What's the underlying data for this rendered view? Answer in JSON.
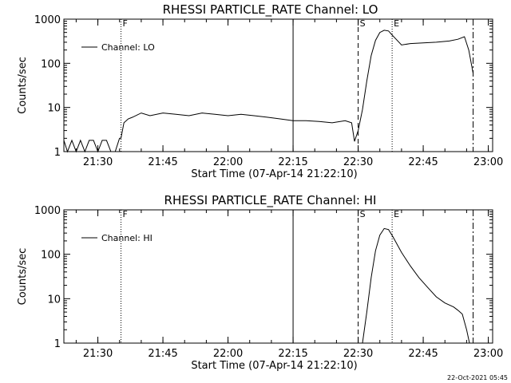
{
  "chart_data": [
    {
      "type": "line",
      "title": "RHESSI PARTICLE_RATE Channel: LO",
      "xlabel": "Start Time (07-Apr-14 21:22:10)",
      "ylabel": "Counts/sec",
      "yscale": "log",
      "ylim": [
        1,
        1000
      ],
      "xlim": [
        "21:22:10",
        "23:01:00"
      ],
      "x_ticks": [
        "21:30",
        "21:45",
        "22:00",
        "22:15",
        "22:30",
        "22:45",
        "23:00"
      ],
      "y_ticks": [
        "1",
        "10",
        "100",
        "1000"
      ],
      "grid": false,
      "legend": {
        "position": "top-left",
        "entries": [
          "Channel: LO"
        ]
      },
      "markers": [
        {
          "label": "F",
          "time": "21:35:20",
          "style": "dotted"
        },
        {
          "time": "22:15:00",
          "style": "solid"
        },
        {
          "label": "S",
          "time": "22:30:00",
          "style": "dashed"
        },
        {
          "label": "E",
          "time": "22:37:50",
          "style": "dotted"
        },
        {
          "time": "22:56:30",
          "style": "dashdot"
        }
      ],
      "series": [
        {
          "name": "Channel: LO",
          "x": [
            "21:22:10",
            "21:23:00",
            "21:24:00",
            "21:25:00",
            "21:26:00",
            "21:27:00",
            "21:28:00",
            "21:29:00",
            "21:30:00",
            "21:31:00",
            "21:32:00",
            "21:33:00",
            "21:34:00",
            "21:35:00",
            "21:35:20",
            "21:36:00",
            "21:37:00",
            "21:38:00",
            "21:40:00",
            "21:42:00",
            "21:45:00",
            "21:48:00",
            "21:51:00",
            "21:54:00",
            "21:57:00",
            "22:00:00",
            "22:03:00",
            "22:06:00",
            "22:09:00",
            "22:12:00",
            "22:15:00",
            "22:18:00",
            "22:21:00",
            "22:24:00",
            "22:27:00",
            "22:28:30",
            "22:29:10",
            "22:30:00",
            "22:31:00",
            "22:32:00",
            "22:33:00",
            "22:34:00",
            "22:35:00",
            "22:36:00",
            "22:37:00",
            "22:38:00",
            "22:40:00",
            "22:42:00",
            "22:45:00",
            "22:48:00",
            "22:51:00",
            "22:53:00",
            "22:54:30",
            "22:55:30",
            "22:56:30"
          ],
          "y": [
            1.8,
            1,
            1.8,
            1,
            1.8,
            1,
            1.8,
            1.8,
            1,
            1.8,
            1.8,
            1,
            1,
            2,
            2,
            4.5,
            5.5,
            6,
            7.5,
            6.5,
            7.5,
            7,
            6.5,
            7.5,
            7,
            6.5,
            7,
            6.5,
            6,
            5.5,
            5,
            5,
            4.8,
            4.5,
            5,
            4.5,
            1.7,
            3,
            9,
            40,
            150,
            330,
            500,
            560,
            540,
            420,
            260,
            280,
            290,
            300,
            320,
            350,
            400,
            200,
            60
          ]
        }
      ]
    },
    {
      "type": "line",
      "title": "RHESSI PARTICLE_RATE Channel: HI",
      "xlabel": "Start Time (07-Apr-14 21:22:10)",
      "ylabel": "Counts/sec",
      "yscale": "log",
      "ylim": [
        1,
        1000
      ],
      "xlim": [
        "21:22:10",
        "23:01:00"
      ],
      "x_ticks": [
        "21:30",
        "21:45",
        "22:00",
        "22:15",
        "22:30",
        "22:45",
        "23:00"
      ],
      "y_ticks": [
        "1",
        "10",
        "100",
        "1000"
      ],
      "grid": false,
      "legend": {
        "position": "top-left",
        "entries": [
          "Channel: HI"
        ]
      },
      "markers": [
        {
          "label": "F",
          "time": "21:35:20",
          "style": "dotted"
        },
        {
          "time": "22:15:00",
          "style": "solid"
        },
        {
          "label": "S",
          "time": "22:30:00",
          "style": "dashed"
        },
        {
          "label": "E",
          "time": "22:37:50",
          "style": "dotted"
        },
        {
          "time": "22:56:30",
          "style": "dashdot"
        }
      ],
      "series": [
        {
          "name": "Channel: HI",
          "x": [
            "22:31:00",
            "22:32:00",
            "22:33:00",
            "22:34:00",
            "22:35:00",
            "22:36:00",
            "22:37:00",
            "22:38:00",
            "22:40:00",
            "22:42:00",
            "22:44:00",
            "22:46:00",
            "22:48:00",
            "22:50:00",
            "22:52:00",
            "22:53:00",
            "22:54:00",
            "22:55:00",
            "22:55:40"
          ],
          "y": [
            1,
            5,
            30,
            120,
            270,
            380,
            360,
            250,
            110,
            55,
            30,
            18,
            11,
            8,
            6.5,
            5.5,
            4.5,
            2,
            1
          ]
        }
      ]
    }
  ],
  "footer": {
    "timestamp": "22-Oct-2021 05:45"
  }
}
